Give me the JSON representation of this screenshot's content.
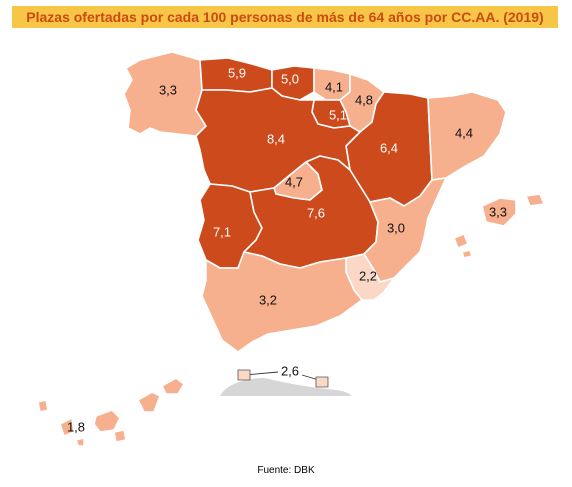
{
  "title": "Plazas ofertadas por cada 100 personas de más de 64 años por CC.AA. (2019)",
  "source": "Fuente: DBK",
  "colors": {
    "high": "#cc4a1c",
    "low": "#f6b08e",
    "lowest": "#fbd7c5",
    "africa_strip": "#d6d6d6",
    "title_bg": "#f7c646",
    "title_text": "#cc4a14"
  },
  "regions": [
    {
      "name": "Galicia",
      "label": "3,3",
      "value": 3.3,
      "level": "low"
    },
    {
      "name": "Asturias",
      "label": "5,9",
      "value": 5.9,
      "level": "high"
    },
    {
      "name": "Cantabria",
      "label": "5,0",
      "value": 5.0,
      "level": "high"
    },
    {
      "name": "País Vasco",
      "label": "4,1",
      "value": 4.1,
      "level": "low"
    },
    {
      "name": "Navarra",
      "label": "4,8",
      "value": 4.8,
      "level": "low"
    },
    {
      "name": "La Rioja",
      "label": "5,1",
      "value": 5.1,
      "level": "high"
    },
    {
      "name": "Aragón",
      "label": "6,4",
      "value": 6.4,
      "level": "high"
    },
    {
      "name": "Cataluña",
      "label": "4,4",
      "value": 4.4,
      "level": "low"
    },
    {
      "name": "Castilla y León",
      "label": "8,4",
      "value": 8.4,
      "level": "high"
    },
    {
      "name": "Madrid",
      "label": "4,7",
      "value": 4.7,
      "level": "low"
    },
    {
      "name": "Extremadura",
      "label": "7,1",
      "value": 7.1,
      "level": "high"
    },
    {
      "name": "Castilla-La Mancha",
      "label": "7,6",
      "value": 7.6,
      "level": "high"
    },
    {
      "name": "Comunidad Valenciana",
      "label": "3,0",
      "value": 3.0,
      "level": "low"
    },
    {
      "name": "Murcia",
      "label": "2,2",
      "value": 2.2,
      "level": "lowest"
    },
    {
      "name": "Andalucía",
      "label": "3,2",
      "value": 3.2,
      "level": "low"
    },
    {
      "name": "Baleares",
      "label": "3,3",
      "value": 3.3,
      "level": "low"
    },
    {
      "name": "Ceuta y Melilla",
      "label": "2,6",
      "value": 2.6,
      "level": "lowest"
    },
    {
      "name": "Canarias",
      "label": "1,8",
      "value": 1.8,
      "level": "low"
    }
  ]
}
